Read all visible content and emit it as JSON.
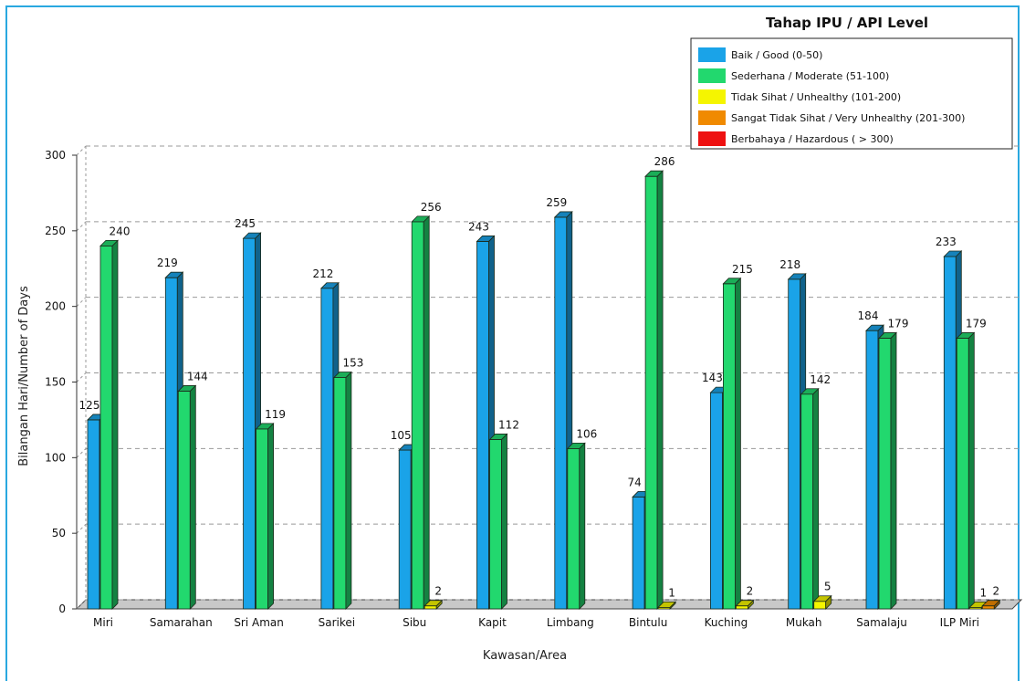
{
  "chart_data": {
    "type": "bar",
    "title": "Tahap IPU / API Level",
    "xlabel": "Kawasan/Area",
    "ylabel": "Bilangan Hari/Number of Days",
    "ylim": [
      0,
      300
    ],
    "yticks": [
      0,
      50,
      100,
      150,
      200,
      250,
      300
    ],
    "grid": true,
    "legend_position": "top-right",
    "categories": [
      "Miri",
      "Samarahan",
      "Sri Aman",
      "Sarikei",
      "Sibu",
      "Kapit",
      "Limbang",
      "Bintulu",
      "Kuching",
      "Mukah",
      "Samalaju",
      "ILP Miri"
    ],
    "series": [
      {
        "name": "Baik / Good (0-50)",
        "color": "#1aa3e8",
        "values": [
          125,
          219,
          245,
          212,
          105,
          243,
          259,
          74,
          143,
          218,
          184,
          233
        ]
      },
      {
        "name": "Sederhana / Moderate (51-100)",
        "color": "#22d86e",
        "values": [
          240,
          144,
          119,
          153,
          256,
          112,
          106,
          286,
          215,
          142,
          179,
          179
        ]
      },
      {
        "name": "Tidak Sihat / Unhealthy (101-200)",
        "color": "#f5f500",
        "values": [
          0,
          0,
          0,
          0,
          2,
          0,
          0,
          1,
          2,
          5,
          0,
          1
        ]
      },
      {
        "name": "Sangat Tidak Sihat / Very Unhealthy (201-300)",
        "color": "#f08a00",
        "values": [
          0,
          0,
          0,
          0,
          0,
          0,
          0,
          0,
          0,
          0,
          0,
          2
        ]
      },
      {
        "name": "Berbahaya / Hazardous ( > 300)",
        "color": "#ee1111",
        "values": [
          0,
          0,
          0,
          0,
          0,
          0,
          0,
          0,
          0,
          0,
          0,
          0
        ]
      }
    ]
  }
}
